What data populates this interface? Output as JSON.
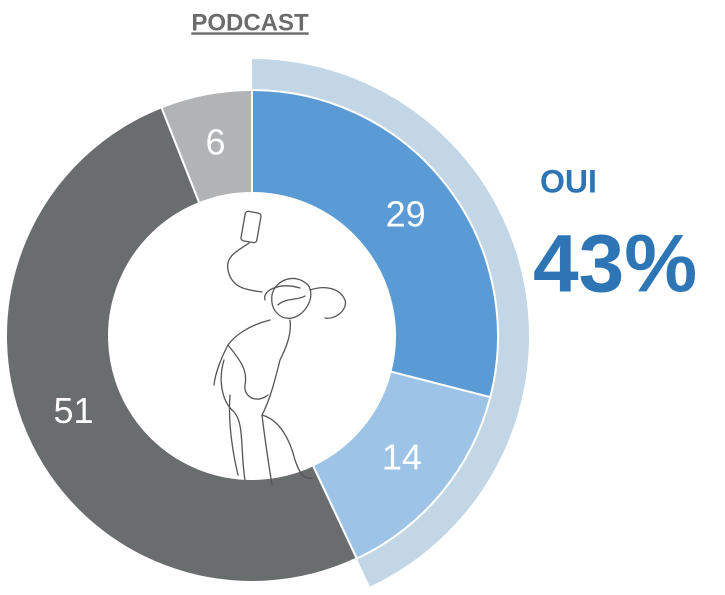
{
  "chart_data": {
    "type": "pie",
    "donut": true,
    "title": "PODCAST",
    "values": [
      29,
      14,
      51,
      6
    ],
    "colors": [
      "#5b9bd5",
      "#9dc3e6",
      "#6a6d6e",
      "#b1b3b5"
    ],
    "highlight": {
      "label": "OUI",
      "value": 43,
      "value_label": "43%",
      "color": "#c3d6e6",
      "label_color": "#2e75b6"
    }
  }
}
